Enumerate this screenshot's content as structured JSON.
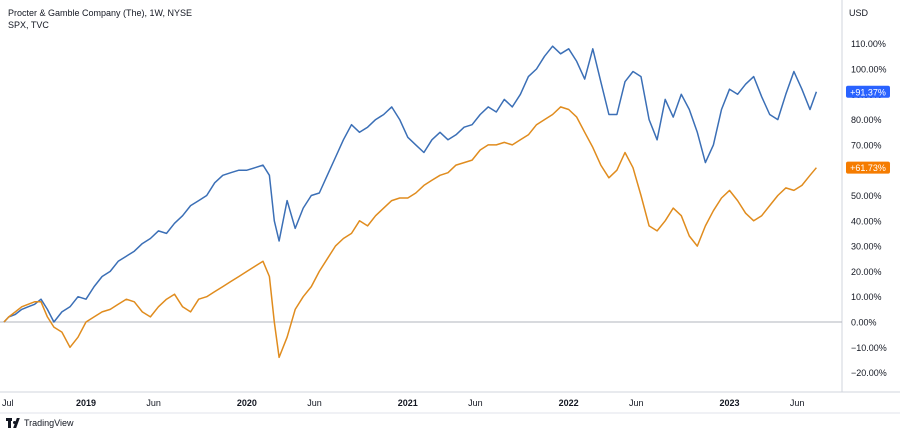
{
  "header": {
    "series1_label": "Procter & Gamble Company (The), 1W, NYSE",
    "series2_label": "SPX, TVC",
    "currency": "USD"
  },
  "footer": {
    "brand": "TradingView"
  },
  "colors": {
    "pg": "#3b6fb6",
    "spx": "#e08c1e",
    "badge_pg": "#2962ff",
    "badge_spx": "#f57c00",
    "zero": "#b2b5be",
    "axis": "#d1d4dc"
  },
  "chart_data": {
    "type": "line",
    "title": "",
    "ylim": [
      -25,
      115
    ],
    "x_range": [
      2018.49,
      2023.55
    ],
    "y_ticks": [
      {
        "v": 110,
        "label": "110.00%"
      },
      {
        "v": 100,
        "label": "100.00%"
      },
      {
        "v": 90,
        "label": "90.00%"
      },
      {
        "v": 80,
        "label": "80.00%"
      },
      {
        "v": 70,
        "label": "70.00%"
      },
      {
        "v": 60,
        "label": "60.00%"
      },
      {
        "v": 50,
        "label": "50.00%"
      },
      {
        "v": 40,
        "label": "40.00%"
      },
      {
        "v": 30,
        "label": "30.00%"
      },
      {
        "v": 20,
        "label": "20.00%"
      },
      {
        "v": 10,
        "label": "10.00%"
      },
      {
        "v": 0,
        "label": "0.00%"
      },
      {
        "v": -10,
        "label": "−10.00%"
      },
      {
        "v": -20,
        "label": "−20.00%"
      }
    ],
    "x_ticks": [
      {
        "t": 2018.5,
        "label": "Jul",
        "bold": false
      },
      {
        "t": 2019.0,
        "label": "2019",
        "bold": true
      },
      {
        "t": 2019.42,
        "label": "Jun",
        "bold": false
      },
      {
        "t": 2020.0,
        "label": "2020",
        "bold": true
      },
      {
        "t": 2020.42,
        "label": "Jun",
        "bold": false
      },
      {
        "t": 2021.0,
        "label": "2021",
        "bold": true
      },
      {
        "t": 2021.42,
        "label": "Jun",
        "bold": false
      },
      {
        "t": 2022.0,
        "label": "2022",
        "bold": true
      },
      {
        "t": 2022.42,
        "label": "Jun",
        "bold": false
      },
      {
        "t": 2023.0,
        "label": "2023",
        "bold": true
      },
      {
        "t": 2023.42,
        "label": "Jun",
        "bold": false
      }
    ],
    "series": [
      {
        "name": "Procter & Gamble Company (The)",
        "last_label": "+91.37%",
        "x": [
          2018.49,
          2018.52,
          2018.56,
          2018.6,
          2018.64,
          2018.68,
          2018.72,
          2018.76,
          2018.8,
          2018.85,
          2018.9,
          2018.95,
          2019.0,
          2019.05,
          2019.1,
          2019.15,
          2019.2,
          2019.25,
          2019.3,
          2019.35,
          2019.4,
          2019.45,
          2019.5,
          2019.55,
          2019.6,
          2019.65,
          2019.7,
          2019.75,
          2019.8,
          2019.85,
          2019.9,
          2019.95,
          2020.0,
          2020.05,
          2020.1,
          2020.14,
          2020.17,
          2020.2,
          2020.25,
          2020.3,
          2020.35,
          2020.4,
          2020.45,
          2020.5,
          2020.55,
          2020.6,
          2020.65,
          2020.7,
          2020.75,
          2020.8,
          2020.85,
          2020.9,
          2020.95,
          2021.0,
          2021.05,
          2021.1,
          2021.15,
          2021.2,
          2021.25,
          2021.3,
          2021.35,
          2021.4,
          2021.45,
          2021.5,
          2021.55,
          2021.6,
          2021.65,
          2021.7,
          2021.75,
          2021.8,
          2021.85,
          2021.9,
          2021.95,
          2022.0,
          2022.05,
          2022.1,
          2022.15,
          2022.2,
          2022.25,
          2022.3,
          2022.35,
          2022.4,
          2022.45,
          2022.5,
          2022.55,
          2022.6,
          2022.65,
          2022.7,
          2022.75,
          2022.8,
          2022.85,
          2022.9,
          2022.95,
          2023.0,
          2023.05,
          2023.1,
          2023.15,
          2023.2,
          2023.25,
          2023.3,
          2023.35,
          2023.4,
          2023.45,
          2023.5,
          2023.54
        ],
        "values": [
          0,
          2,
          3,
          5,
          6,
          7,
          9,
          5,
          0,
          4,
          6,
          10,
          9,
          14,
          18,
          20,
          24,
          26,
          28,
          31,
          33,
          36,
          35,
          39,
          42,
          46,
          48,
          50,
          55,
          58,
          59,
          60,
          60,
          61,
          62,
          58,
          40,
          32,
          48,
          37,
          45,
          50,
          51,
          58,
          65,
          72,
          78,
          75,
          77,
          80,
          82,
          85,
          80,
          73,
          70,
          67,
          72,
          75,
          72,
          74,
          77,
          78,
          82,
          85,
          83,
          88,
          85,
          90,
          97,
          100,
          105,
          109,
          106,
          108,
          103,
          96,
          108,
          95,
          82,
          82,
          95,
          99,
          97,
          80,
          72,
          88,
          81,
          90,
          84,
          75,
          63,
          70,
          84,
          92,
          90,
          94,
          97,
          89,
          82,
          80,
          90,
          99,
          92,
          84,
          91
        ]
      },
      {
        "name": "SPX",
        "last_label": "+61.73%",
        "x": [
          2018.49,
          2018.52,
          2018.56,
          2018.6,
          2018.64,
          2018.68,
          2018.72,
          2018.76,
          2018.8,
          2018.85,
          2018.9,
          2018.95,
          2019.0,
          2019.05,
          2019.1,
          2019.15,
          2019.2,
          2019.25,
          2019.3,
          2019.35,
          2019.4,
          2019.45,
          2019.5,
          2019.55,
          2019.6,
          2019.65,
          2019.7,
          2019.75,
          2019.8,
          2019.85,
          2019.9,
          2019.95,
          2020.0,
          2020.05,
          2020.1,
          2020.14,
          2020.17,
          2020.2,
          2020.25,
          2020.3,
          2020.35,
          2020.4,
          2020.45,
          2020.5,
          2020.55,
          2020.6,
          2020.65,
          2020.7,
          2020.75,
          2020.8,
          2020.85,
          2020.9,
          2020.95,
          2021.0,
          2021.05,
          2021.1,
          2021.15,
          2021.2,
          2021.25,
          2021.3,
          2021.35,
          2021.4,
          2021.45,
          2021.5,
          2021.55,
          2021.6,
          2021.65,
          2021.7,
          2021.75,
          2021.8,
          2021.85,
          2021.9,
          2021.95,
          2022.0,
          2022.05,
          2022.1,
          2022.15,
          2022.2,
          2022.25,
          2022.3,
          2022.35,
          2022.4,
          2022.45,
          2022.5,
          2022.55,
          2022.6,
          2022.65,
          2022.7,
          2022.75,
          2022.8,
          2022.85,
          2022.9,
          2022.95,
          2023.0,
          2023.05,
          2023.1,
          2023.15,
          2023.2,
          2023.25,
          2023.3,
          2023.35,
          2023.4,
          2023.45,
          2023.5,
          2023.54
        ],
        "values": [
          0,
          2,
          4,
          6,
          7,
          8,
          8,
          2,
          -2,
          -4,
          -10,
          -6,
          0,
          2,
          4,
          5,
          7,
          9,
          8,
          4,
          2,
          6,
          9,
          11,
          6,
          4,
          9,
          10,
          12,
          14,
          16,
          18,
          20,
          22,
          24,
          18,
          0,
          -14,
          -6,
          5,
          10,
          14,
          20,
          25,
          30,
          33,
          35,
          40,
          38,
          42,
          45,
          48,
          49,
          49,
          51,
          54,
          56,
          58,
          59,
          62,
          63,
          64,
          68,
          70,
          70,
          71,
          70,
          72,
          74,
          78,
          80,
          82,
          85,
          84,
          81,
          75,
          69,
          62,
          57,
          60,
          67,
          61,
          50,
          38,
          36,
          40,
          45,
          42,
          34,
          30,
          38,
          44,
          49,
          52,
          48,
          43,
          40,
          42,
          46,
          50,
          53,
          52,
          54,
          58,
          61
        ]
      }
    ]
  }
}
